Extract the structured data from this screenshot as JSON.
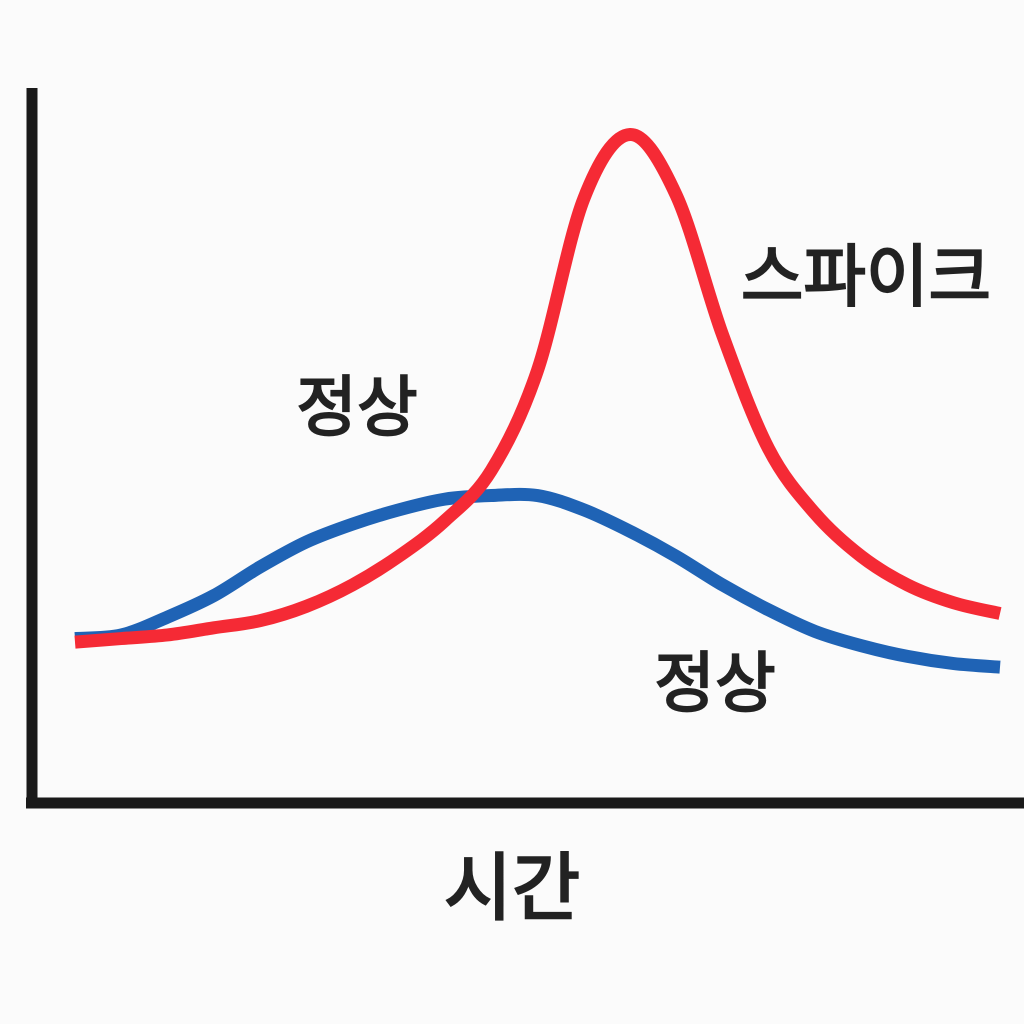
{
  "chart_data": {
    "type": "line",
    "x_label": "시간",
    "annotations": [
      "정상",
      "스파이크",
      "정상"
    ],
    "x": [
      0,
      0.5,
      1,
      1.5,
      2,
      2.5,
      3,
      3.5,
      4,
      4.5,
      5,
      5.5,
      6,
      6.5,
      7,
      7.5,
      8,
      8.5,
      9,
      9.5,
      10
    ],
    "series": [
      {
        "color": "#1f63b5",
        "values": [
          2.3,
          2.35,
          2.6,
          2.9,
          3.3,
          3.65,
          3.9,
          4.1,
          4.25,
          4.3,
          4.3,
          4.1,
          3.8,
          3.45,
          3.05,
          2.7,
          2.4,
          2.2,
          2.05,
          1.95,
          1.9
        ]
      },
      {
        "color": "#f52a35",
        "values": [
          2.25,
          2.3,
          2.35,
          2.45,
          2.55,
          2.75,
          3.05,
          3.45,
          3.95,
          4.65,
          6.05,
          8.45,
          9.35,
          8.5,
          6.55,
          4.95,
          4.05,
          3.45,
          3.05,
          2.8,
          2.65
        ]
      }
    ],
    "xlim": [
      0,
      10
    ],
    "ylim": [
      0,
      10
    ]
  }
}
